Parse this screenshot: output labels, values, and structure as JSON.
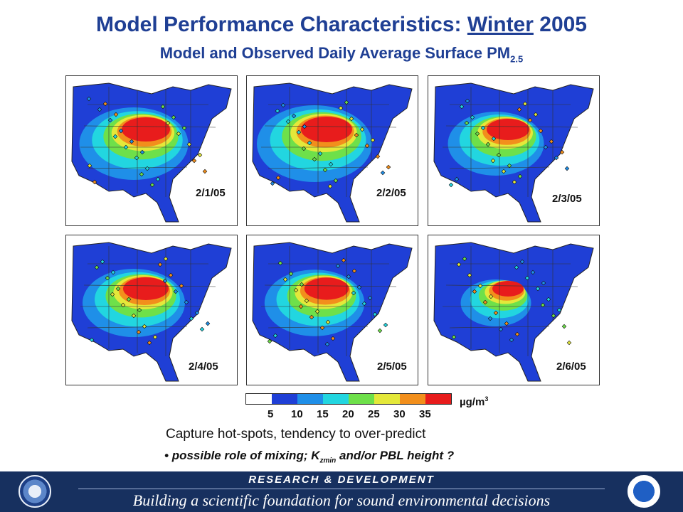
{
  "title": {
    "part1": "Model Performance Characteristics: ",
    "season": "Winter",
    "part2": " 2005",
    "subtitle_main": "Model and Observed Daily Average Surface PM",
    "subtitle_sub": "2.5"
  },
  "maps": [
    {
      "date": "2/1/05",
      "intensity": 0.85
    },
    {
      "date": "2/2/05",
      "intensity": 0.9
    },
    {
      "date": "2/3/05",
      "intensity": 0.75
    },
    {
      "date": "2/4/05",
      "intensity": 0.8
    },
    {
      "date": "2/5/05",
      "intensity": 0.78
    },
    {
      "date": "2/6/05",
      "intensity": 0.55
    }
  ],
  "legend": {
    "colors": [
      "#ffffff",
      "#1f3fd6",
      "#1f8fe8",
      "#22d6e0",
      "#6ee04a",
      "#e4e83a",
      "#f28f1c",
      "#e81c1c"
    ],
    "ticks": [
      "5",
      "10",
      "15",
      "20",
      "25",
      "30",
      "35"
    ],
    "unit_main": "µg/m",
    "unit_sup": "3"
  },
  "caption": "Capture hot-spots, tendency to over-predict",
  "bullet": {
    "marker": "•",
    "text1": "possible role of mixing; K",
    "sub": "zmin",
    "text2": " and/or PBL height ?"
  },
  "footer": {
    "heading": "RESEARCH & DEVELOPMENT",
    "tagline": "Building a scientific foundation for sound environmental decisions"
  }
}
